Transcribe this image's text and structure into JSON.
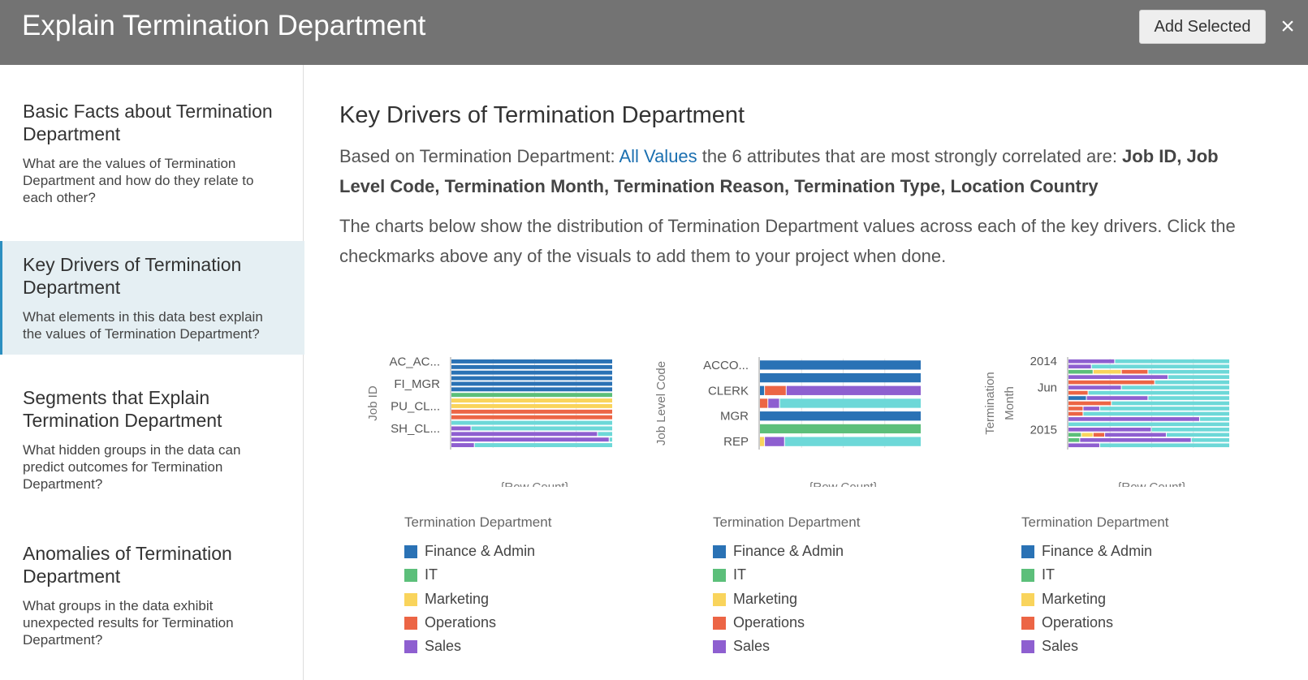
{
  "header": {
    "title": "Explain Termination Department",
    "add_button": "Add Selected"
  },
  "sidebar": {
    "items": [
      {
        "title": "Basic Facts about Termination Department",
        "desc": "What are the values of Termination Department and how do they relate to each other?"
      },
      {
        "title": "Key Drivers of Termination Department",
        "desc": "What elements in this data best explain the values of Termination Department?"
      },
      {
        "title": "Segments that Explain Termination Department",
        "desc": "What hidden groups in the data can predict outcomes for Termination Department?"
      },
      {
        "title": "Anomalies of Termination Department",
        "desc": "What groups in the data exhibit unexpected results for Termination Department?"
      }
    ]
  },
  "main": {
    "title": "Key Drivers of Termination Department",
    "p1_prefix": "Based on Termination Department: ",
    "p1_link": "All Values",
    "p1_mid": " the 6 attributes that are most strongly correlated are: ",
    "p1_attrs": "Job ID, Job Level Code, Termination Month, Termination Reason, Termination Type, Location Country",
    "p2": "The charts below show the distribution of Termination Department values across each of the key drivers. Click the checkmarks above any of the visuals to add them to your project when done."
  },
  "colors": {
    "Finance & Admin": "#2a72b5",
    "IT": "#5cbf7a",
    "Marketing": "#f9d45c",
    "Operations": "#ec6545",
    "Sales": "#8e5fd0",
    "Other": "#6dd8d8"
  },
  "chart_data": [
    {
      "type": "bar",
      "orientation": "horizontal",
      "stacked": true,
      "normalized": true,
      "ylabel": "Job ID",
      "xlabel": "{Row Count}",
      "tick_labels": [
        "AC_AC...",
        "FI_MGR",
        "PU_CL...",
        "SH_CL..."
      ],
      "legend_title": "Termination Department",
      "legend": [
        "Finance & Admin",
        "IT",
        "Marketing",
        "Operations",
        "Sales"
      ],
      "series_keys": [
        "Finance & Admin",
        "IT",
        "Marketing",
        "Operations",
        "Sales",
        "Other"
      ],
      "rows": [
        {
          "category": "AC_AC...",
          "values": [
            1,
            0,
            0,
            0,
            0,
            0
          ]
        },
        {
          "category": "",
          "values": [
            1,
            0,
            0,
            0,
            0,
            0
          ]
        },
        {
          "category": "",
          "values": [
            1,
            0,
            0,
            0,
            0,
            0
          ]
        },
        {
          "category": "",
          "values": [
            1,
            0,
            0,
            0,
            0,
            0
          ]
        },
        {
          "category": "FI_MGR",
          "values": [
            1,
            0,
            0,
            0,
            0,
            0
          ]
        },
        {
          "category": "",
          "values": [
            1,
            0,
            0,
            0,
            0,
            0
          ]
        },
        {
          "category": "",
          "values": [
            0,
            1,
            0,
            0,
            0,
            0
          ]
        },
        {
          "category": "",
          "values": [
            0,
            0,
            1,
            0,
            0,
            0
          ]
        },
        {
          "category": "PU_CL...",
          "values": [
            0,
            0,
            1,
            0,
            0,
            0
          ]
        },
        {
          "category": "",
          "values": [
            0,
            0,
            0,
            1,
            0,
            0
          ]
        },
        {
          "category": "",
          "values": [
            0,
            0,
            0,
            1,
            0,
            0
          ]
        },
        {
          "category": "",
          "values": [
            0,
            0,
            0,
            0,
            0,
            1
          ]
        },
        {
          "category": "SH_CL...",
          "values": [
            0,
            0,
            0,
            0,
            0.12,
            0.88
          ]
        },
        {
          "category": "",
          "values": [
            0,
            0,
            0,
            0,
            0.88,
            0.12
          ]
        },
        {
          "category": "",
          "values": [
            0,
            0,
            0,
            0,
            0.95,
            0.05
          ]
        },
        {
          "category": "",
          "values": [
            0,
            0,
            0,
            0,
            0.14,
            0.86
          ]
        }
      ],
      "xlim": [
        0,
        1
      ]
    },
    {
      "type": "bar",
      "orientation": "horizontal",
      "stacked": true,
      "normalized": true,
      "ylabel": "Job Level Code",
      "xlabel": "{Row Count}",
      "tick_labels": [
        "ACCO...",
        "CLERK",
        "MGR",
        "REP"
      ],
      "legend_title": "Termination Department",
      "legend": [
        "Finance & Admin",
        "IT",
        "Marketing",
        "Operations",
        "Sales"
      ],
      "series_keys": [
        "Finance & Admin",
        "IT",
        "Marketing",
        "Operations",
        "Sales",
        "Other"
      ],
      "rows": [
        {
          "category": "ACCO...",
          "values": [
            1,
            0,
            0,
            0,
            0,
            0
          ]
        },
        {
          "category": "",
          "values": [
            1,
            0,
            0,
            0,
            0,
            0
          ]
        },
        {
          "category": "CLERK",
          "values": [
            0.03,
            0,
            0,
            0.13,
            0.84,
            0
          ]
        },
        {
          "category": "",
          "values": [
            0,
            0,
            0,
            0.05,
            0.07,
            0.88
          ]
        },
        {
          "category": "MGR",
          "values": [
            1,
            0,
            0,
            0,
            0,
            0
          ]
        },
        {
          "category": "",
          "values": [
            0,
            1,
            0,
            0,
            0,
            0
          ]
        },
        {
          "category": "REP",
          "values": [
            0,
            0,
            0.03,
            0,
            0.12,
            0.85
          ]
        }
      ],
      "xlim": [
        0,
        1
      ]
    },
    {
      "type": "bar",
      "orientation": "horizontal",
      "stacked": true,
      "normalized": true,
      "ylabel": "Termination Month",
      "xlabel": "{Row Count}",
      "tick_labels": [
        "2014",
        "Jun",
        "2015"
      ],
      "legend_title": "Termination Department",
      "legend": [
        "Finance & Admin",
        "IT",
        "Marketing",
        "Operations",
        "Sales"
      ],
      "series_keys": [
        "Finance & Admin",
        "IT",
        "Marketing",
        "Operations",
        "Sales",
        "Other"
      ],
      "rows": [
        {
          "category": "2014",
          "values": [
            0,
            0,
            0,
            0,
            0.28,
            0.72
          ]
        },
        {
          "category": "",
          "values": [
            0,
            0,
            0,
            0,
            0.14,
            0.86
          ]
        },
        {
          "category": "",
          "values": [
            0,
            0.15,
            0.17,
            0.16,
            0,
            0.52
          ]
        },
        {
          "category": "",
          "values": [
            0,
            0,
            0,
            0,
            0.6,
            0.4
          ]
        },
        {
          "category": "",
          "values": [
            0,
            0,
            0,
            0.52,
            0,
            0.48
          ]
        },
        {
          "category": "Jun",
          "values": [
            0,
            0,
            0,
            0,
            0.32,
            0.68
          ]
        },
        {
          "category": "",
          "values": [
            0,
            0,
            0,
            0.12,
            0,
            0.88
          ]
        },
        {
          "category": "",
          "values": [
            0.11,
            0,
            0,
            0,
            0.37,
            0.52
          ]
        },
        {
          "category": "",
          "values": [
            0,
            0,
            0,
            0.26,
            0,
            0.74
          ]
        },
        {
          "category": "",
          "values": [
            0,
            0,
            0,
            0.09,
            0.1,
            0.81
          ]
        },
        {
          "category": "",
          "values": [
            0,
            0,
            0,
            0.09,
            0,
            0.91
          ]
        },
        {
          "category": "",
          "values": [
            0,
            0,
            0,
            0,
            0.79,
            0.21
          ]
        },
        {
          "category": "",
          "values": [
            0,
            0,
            0,
            0,
            0,
            1
          ]
        },
        {
          "category": "2015",
          "values": [
            0,
            0,
            0,
            0,
            0.5,
            0.5
          ]
        },
        {
          "category": "",
          "values": [
            0,
            0.08,
            0.07,
            0.07,
            0.37,
            0.41
          ]
        },
        {
          "category": "",
          "values": [
            0,
            0.07,
            0,
            0,
            0.67,
            0.26
          ]
        },
        {
          "category": "",
          "values": [
            0,
            0,
            0,
            0,
            0.19,
            0.81
          ]
        }
      ],
      "xlim": [
        0,
        1
      ]
    }
  ]
}
